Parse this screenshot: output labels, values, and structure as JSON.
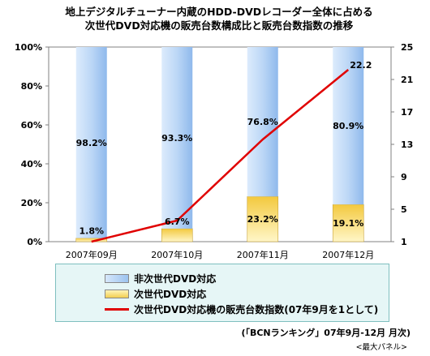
{
  "title_line1": "地上デジタルチューナー内蔵のHDD-DVDレコーダー全体に占める",
  "title_line2": "次世代DVD対応機の販売台数構成比と販売台数指数の推移",
  "legend": {
    "non_next_gen": "非次世代DVD対応",
    "next_gen": "次世代DVD対応",
    "index": "次世代DVD対応機の販売台数指数(07年9月を1として)"
  },
  "source": "(「BCNランキング」07年9月-12月 月次)",
  "note": "<最大パネル>",
  "colors": {
    "red_line": "#e00000",
    "blue_top": "#d6e7fb",
    "blue_bottom": "#9cc3ef",
    "yellow_top": "#fff4b8",
    "yellow_bottom": "#f2cf52"
  },
  "chart_data": {
    "type": "bar",
    "stacked": true,
    "categories": [
      "2007年09月",
      "2007年10月",
      "2007年11月",
      "2007年12月"
    ],
    "series": [
      {
        "name": "次世代DVD対応",
        "values": [
          1.8,
          6.7,
          23.2,
          19.1
        ],
        "labels": [
          "1.8%",
          "6.7%",
          "23.2%",
          "19.1%"
        ]
      },
      {
        "name": "非次世代DVD対応",
        "values": [
          98.2,
          93.3,
          76.8,
          80.9
        ],
        "labels": [
          "98.2%",
          "93.3%",
          "76.8%",
          "80.9%"
        ]
      }
    ],
    "line_series": {
      "name": "次世代DVD対応機の販売台数指数(07年9月を1として)",
      "values": [
        1.0,
        3.6,
        13.6,
        22.2
      ],
      "labels": [
        "",
        "",
        "",
        "22.2"
      ]
    },
    "y_left": {
      "min": 0,
      "max": 100,
      "ticks": [
        "0%",
        "20%",
        "40%",
        "60%",
        "80%",
        "100%"
      ]
    },
    "y_right": {
      "min": 1,
      "max": 25,
      "ticks": [
        "1",
        "5",
        "9",
        "13",
        "17",
        "21",
        "25"
      ]
    },
    "grid": false
  }
}
